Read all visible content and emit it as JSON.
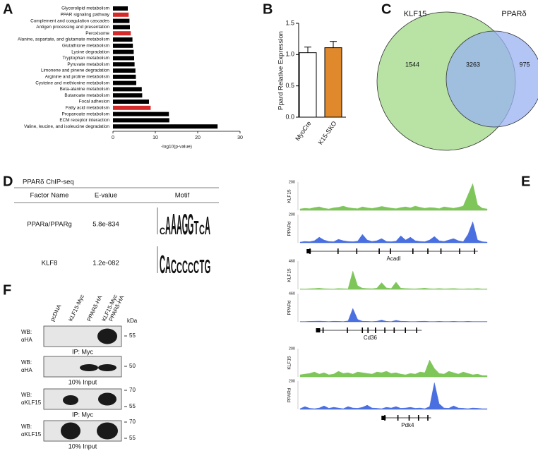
{
  "chart_data": [
    {
      "panel": "A",
      "type": "bar",
      "orientation": "horizontal",
      "categories": [
        "Glycerolipid metabolism",
        "PPAR signaling pathway",
        "Complement and coagulation cascades",
        "Antigen processing and presentation",
        "Peroxisome",
        "Alanine, aspartate, and glutamate metabolism",
        "Glutathione metabolism",
        "Lysine degradation",
        "Tryptophan metabolism",
        "Pyruvate metabolism",
        "Limonene and pinene degradation",
        "Arginine and proline metabolism",
        "Cysteine and methionine metabolism",
        "Beta-alanine metabolism",
        "Butanoate metabolism",
        "Focal adhesion",
        "Fatty acid metabolism",
        "Propanoate metabolism",
        "ECM receptor interaction",
        "Valine, leucine, and isoleucine degradation"
      ],
      "values": [
        3.5,
        3.7,
        3.9,
        4.0,
        4.2,
        4.6,
        4.7,
        4.9,
        5.0,
        5.1,
        5.3,
        5.4,
        5.5,
        6.8,
        6.9,
        8.5,
        8.9,
        13.2,
        13.3,
        24.7
      ],
      "colors": [
        "#000000",
        "#d42a2a",
        "#000000",
        "#000000",
        "#d42a2a",
        "#000000",
        "#000000",
        "#000000",
        "#000000",
        "#000000",
        "#000000",
        "#000000",
        "#000000",
        "#000000",
        "#000000",
        "#000000",
        "#d42a2a",
        "#000000",
        "#000000",
        "#000000"
      ],
      "xlabel": "-log10(p-value)",
      "xlim": [
        0,
        30
      ],
      "xticks": [
        0,
        10,
        20,
        30
      ]
    },
    {
      "panel": "B",
      "type": "bar",
      "orientation": "vertical",
      "categories": [
        "MyoCre",
        "K15-SKO"
      ],
      "values": [
        1.03,
        1.11
      ],
      "errors": [
        0.09,
        0.1
      ],
      "colors": [
        "#ffffff",
        "#e0892c"
      ],
      "ylabel": "Ppard Relative Expression",
      "ylim": [
        0,
        1.5
      ],
      "yticks": [
        {
          "value": 0,
          "label": "0.0"
        },
        0.5,
        {
          "value": 1,
          "label": "1.0"
        },
        1.5
      ]
    },
    {
      "panel": "C",
      "type": "venn",
      "sets": [
        {
          "name": "KLF15",
          "color": "#b8e3a4"
        },
        {
          "name": "PPARδ",
          "color": "#98b2f2"
        }
      ],
      "values": [
        1544,
        3263,
        975
      ]
    }
  ],
  "chip_seq": {
    "panel": "D",
    "title": "PPARδ ChIP-seq",
    "columns": [
      "Factor Name",
      "E-value",
      "Motif"
    ],
    "rows": [
      {
        "factor": "PPARa/PPARg",
        "evalue": "5.8e-834",
        "motif": "CAAAGGTCA"
      },
      {
        "factor": "KLF8",
        "evalue": "1.2e-082",
        "motif": "CACCCCCTG"
      }
    ]
  },
  "tracks": {
    "panel": "E",
    "genes": [
      {
        "name": "Acadl",
        "tracks": [
          {
            "name": "KLF15",
            "color": "#7ec65a",
            "ylim": [
              0,
              200
            ],
            "yticks": [
              200
            ],
            "values": [
              10,
              15,
              12,
              20,
              25,
              15,
              10,
              18,
              22,
              30,
              20,
              15,
              12,
              25,
              18,
              14,
              20,
              28,
              22,
              16,
              12,
              20,
              25,
              18,
              30,
              22,
              15,
              20,
              18,
              12,
              25,
              20,
              15,
              22,
              30,
              110,
              190,
              40,
              15,
              10
            ]
          },
          {
            "name": "PPARd",
            "color": "#4a6fe0",
            "ylim": [
              0,
              200
            ],
            "yticks": [
              200
            ],
            "values": [
              5,
              10,
              8,
              15,
              40,
              20,
              10,
              8,
              25,
              15,
              10,
              8,
              12,
              60,
              20,
              10,
              15,
              30,
              10,
              8,
              12,
              50,
              20,
              40,
              15,
              10,
              8,
              20,
              45,
              15,
              10,
              20,
              30,
              15,
              8,
              60,
              150,
              20,
              8,
              5
            ]
          }
        ]
      },
      {
        "name": "Cd36",
        "tracks": [
          {
            "name": "KLF15",
            "color": "#7ec65a",
            "ylim": [
              0,
              460
            ],
            "yticks": [
              460
            ],
            "values": [
              10,
              8,
              12,
              15,
              20,
              12,
              10,
              8,
              15,
              12,
              10,
              300,
              60,
              20,
              15,
              12,
              20,
              110,
              25,
              15,
              120,
              20,
              15,
              12,
              10,
              15,
              20,
              12,
              10,
              15,
              10,
              12,
              15,
              10,
              8,
              12,
              10,
              15,
              8,
              10
            ]
          },
          {
            "name": "PPARd",
            "color": "#4a6fe0",
            "ylim": [
              0,
              460
            ],
            "yticks": [
              460
            ],
            "values": [
              5,
              5,
              8,
              10,
              12,
              8,
              5,
              10,
              8,
              5,
              15,
              220,
              40,
              10,
              8,
              5,
              10,
              30,
              8,
              5,
              25,
              10,
              8,
              5,
              5,
              8,
              10,
              5,
              5,
              8,
              5,
              5,
              8,
              5,
              5,
              8,
              5,
              5,
              5,
              5
            ]
          }
        ]
      },
      {
        "name": "Pdk4",
        "tracks": [
          {
            "name": "KLF15",
            "color": "#7ec65a",
            "ylim": [
              0,
              200
            ],
            "yticks": [
              200
            ],
            "values": [
              15,
              20,
              25,
              35,
              20,
              30,
              15,
              20,
              40,
              25,
              30,
              20,
              35,
              30,
              25,
              20,
              35,
              30,
              40,
              25,
              30,
              20,
              15,
              25,
              20,
              35,
              30,
              120,
              60,
              25,
              20,
              40,
              30,
              20,
              35,
              25,
              15,
              20,
              10,
              10
            ]
          },
          {
            "name": "PPARd",
            "color": "#4a6fe0",
            "ylim": [
              0,
              200
            ],
            "yticks": [
              200
            ],
            "values": [
              5,
              20,
              8,
              5,
              10,
              25,
              8,
              15,
              10,
              5,
              20,
              10,
              8,
              15,
              30,
              10,
              8,
              5,
              15,
              10,
              20,
              8,
              10,
              15,
              8,
              10,
              5,
              20,
              190,
              40,
              10,
              8,
              25,
              10,
              8,
              5,
              10,
              8,
              5,
              5
            ]
          }
        ]
      }
    ]
  },
  "western_blot": {
    "panel": "F",
    "lanes": [
      [
        "pcDNA"
      ],
      [
        "KLF15-Myc"
      ],
      [
        "PPARδ-HA"
      ],
      [
        "KLF15-Myc",
        "PPARδ-HA"
      ]
    ],
    "unit": "kDa",
    "blots": [
      {
        "wb": "WB:",
        "antibody": "αHA",
        "caption": "IP: Myc",
        "markers": [
          "55"
        ]
      },
      {
        "wb": "WB:",
        "antibody": "αHA",
        "caption": "10% Input",
        "markers": [
          "50"
        ]
      },
      {
        "wb": "WB:",
        "antibody": "αKLF15",
        "caption": "IP: Myc",
        "markers": [
          "70",
          "55"
        ]
      },
      {
        "wb": "WB:",
        "antibody": "αKLF15",
        "caption": "10% Input",
        "markers": [
          "70",
          "55"
        ]
      }
    ]
  }
}
